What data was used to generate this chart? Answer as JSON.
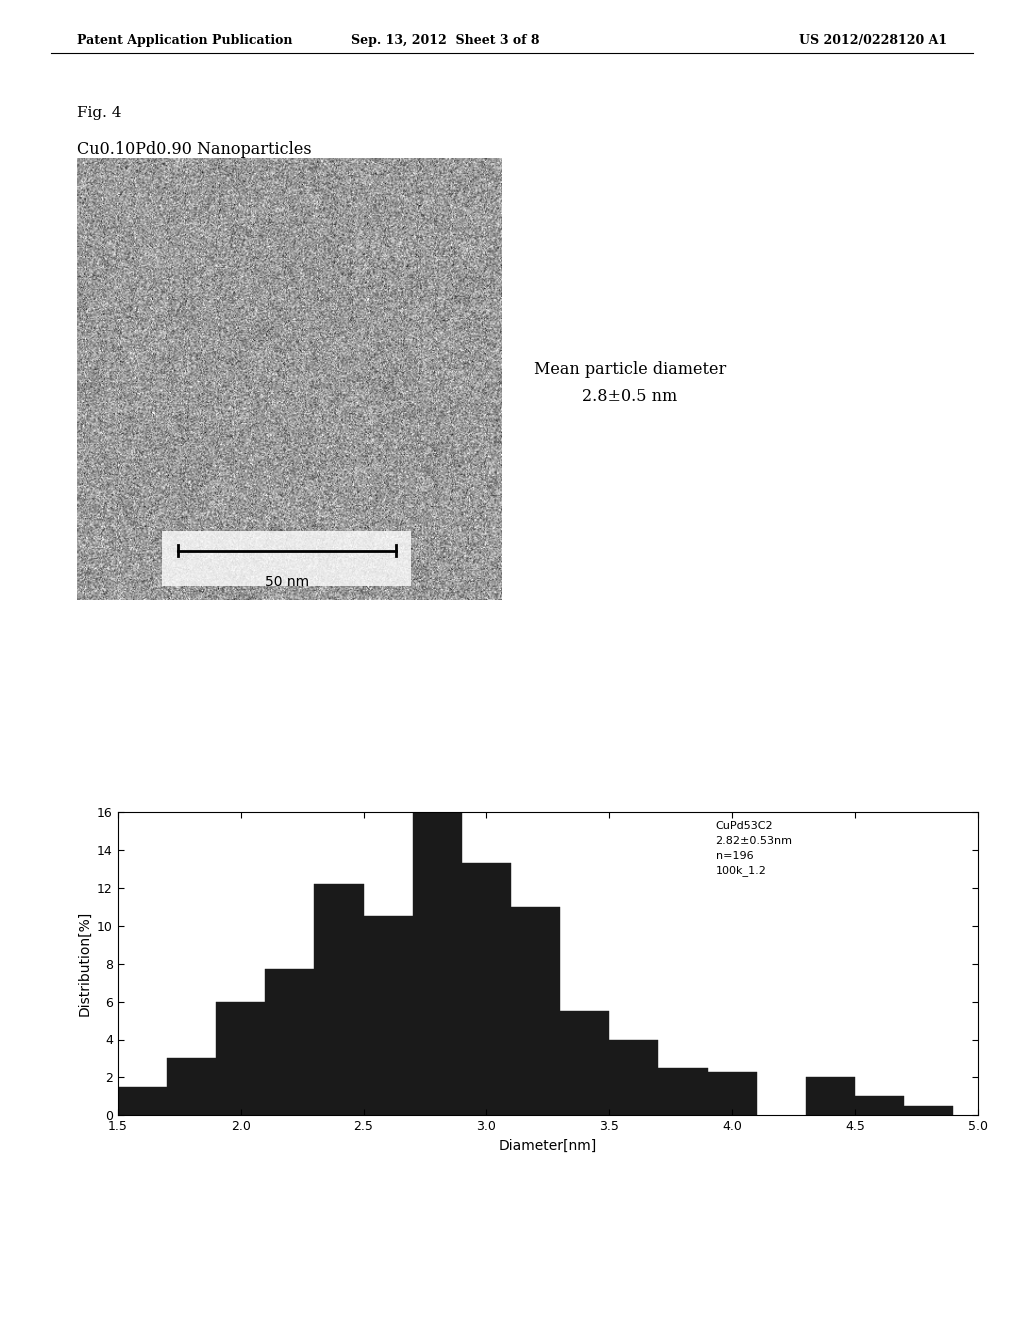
{
  "header_left": "Patent Application Publication",
  "header_mid": "Sep. 13, 2012  Sheet 3 of 8",
  "header_right": "US 2012/0228120 A1",
  "fig_label": "Fig. 4",
  "subtitle": "Cu0.10Pd0.90 Nanoparticles",
  "mean_diameter_line1": "Mean particle diameter",
  "mean_diameter_line2": "2.8±0.5 nm",
  "annotation_text": "CuPd53C2\n2.82±0.53nm\nn=196\n100k_1.2",
  "xlabel": "Diameter[nm]",
  "ylabel": "Distribution[%]",
  "xlim": [
    1.5,
    5.0
  ],
  "ylim": [
    0,
    16
  ],
  "xticks": [
    1.5,
    2.0,
    2.5,
    3.0,
    3.5,
    4.0,
    4.5,
    5.0
  ],
  "yticks": [
    0,
    2,
    4,
    6,
    8,
    10,
    12,
    14,
    16
  ],
  "bar_edges": [
    1.6,
    1.8,
    2.0,
    2.2,
    2.4,
    2.6,
    2.8,
    3.0,
    3.2,
    3.4,
    3.6,
    3.8,
    4.0,
    4.2,
    4.4,
    4.6,
    4.8,
    5.0
  ],
  "bar_heights": [
    1.5,
    3.0,
    6.0,
    7.7,
    12.2,
    10.5,
    16.0,
    13.3,
    11.0,
    5.5,
    4.0,
    2.5,
    2.3,
    0.0,
    2.0,
    1.0,
    0.5,
    0.0
  ],
  "bar_color": "#1a1a1a",
  "background_color": "#ffffff",
  "page_bg": "#ffffff"
}
